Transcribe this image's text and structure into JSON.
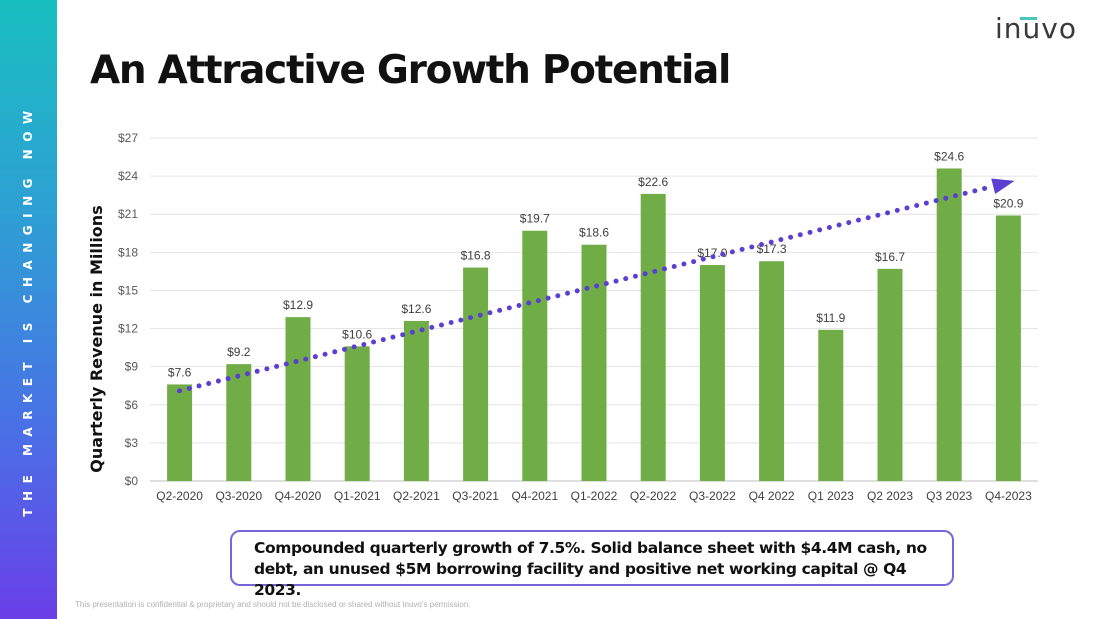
{
  "side_band": {
    "text": "THE MARKET IS CHANGING NOW"
  },
  "logo": {
    "text": "inuvo"
  },
  "title": "An Attractive Growth Potential",
  "chart_data": {
    "type": "bar",
    "ylabel": "Quarterly Revenue in Millions",
    "xlabel": "",
    "ylim": [
      0,
      27
    ],
    "yticks": [
      "$0",
      "$3",
      "$6",
      "$9",
      "$12",
      "$15",
      "$18",
      "$21",
      "$24",
      "$27"
    ],
    "ytick_values": [
      0,
      3,
      6,
      9,
      12,
      15,
      18,
      21,
      24,
      27
    ],
    "categories": [
      "Q2-2020",
      "Q3-2020",
      "Q4-2020",
      "Q1-2021",
      "Q2-2021",
      "Q3-2021",
      "Q4-2021",
      "Q1-2022",
      "Q2-2022",
      "Q3-2022",
      "Q4 2022",
      "Q1 2023",
      "Q2 2023",
      "Q3 2023",
      "Q4-2023"
    ],
    "values": [
      7.6,
      9.2,
      12.9,
      10.6,
      12.6,
      16.8,
      19.7,
      18.6,
      22.6,
      17.0,
      17.3,
      11.9,
      16.7,
      24.6,
      20.9
    ],
    "data_labels": [
      "$7.6",
      "$9.2",
      "$12.9",
      "$10.6",
      "$12.6",
      "$16.8",
      "$19.7",
      "$18.6",
      "$22.6",
      "$17.0",
      "$17.3",
      "$11.9",
      "$16.7",
      "$24.6",
      "$20.9"
    ],
    "grid": true,
    "bar_color": "#70ad47",
    "trendline": {
      "style": "dotted",
      "color": "#5b3fd1",
      "start_value": 7.1,
      "end_value": 23.2,
      "arrow": true
    }
  },
  "callout": {
    "text": "Compounded quarterly growth of 7.5%. Solid balance sheet with $4.4M cash, no debt, an unused $5M borrowing facility and positive net working capital @ Q4 2023."
  },
  "footer": {
    "text": "This presentation is confidential & proprietary and should not be disclosed or shared without Inuvo's permission."
  },
  "colors": {
    "accent_teal": "#19bfc0",
    "accent_purple": "#6a3fe8",
    "bar": "#70ad47",
    "trend": "#5b3fd1",
    "callout_border": "#7b64d8"
  }
}
